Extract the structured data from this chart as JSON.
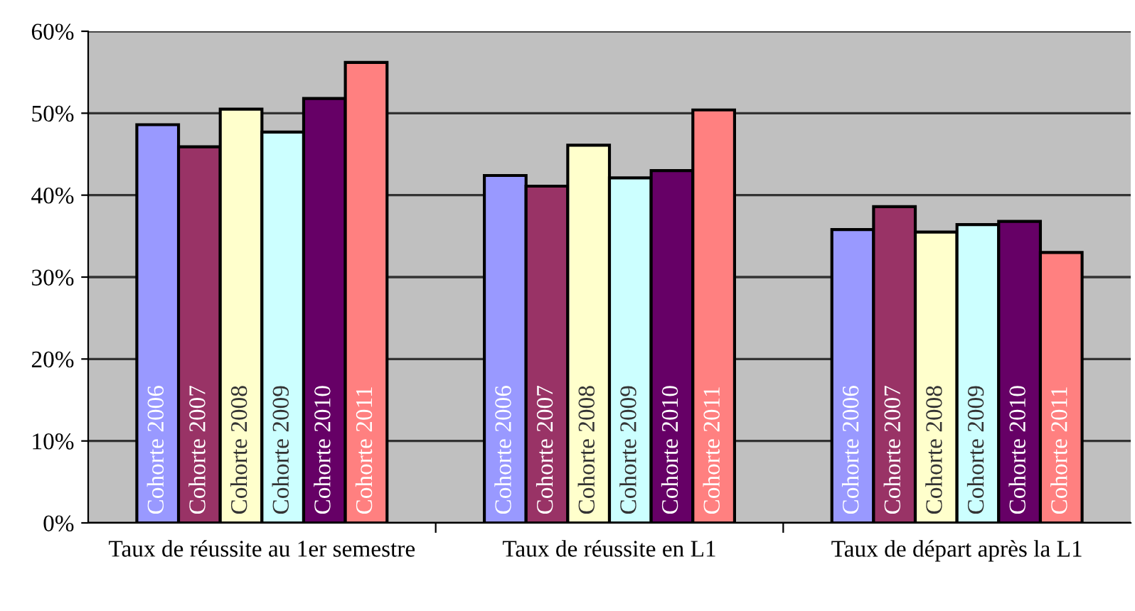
{
  "chart_data": {
    "type": "bar",
    "categories": [
      "Taux de réussite au 1er semestre",
      "Taux de réussite en L1",
      "Taux de départ après la L1"
    ],
    "series": [
      {
        "name": "Cohorte 2006",
        "color": "#9999ff",
        "values": [
          48.6,
          42.4,
          35.8
        ]
      },
      {
        "name": "Cohorte 2007",
        "color": "#993366",
        "values": [
          45.9,
          41.1,
          38.6
        ]
      },
      {
        "name": "Cohorte 2008",
        "color": "#ffffcc",
        "values": [
          50.5,
          46.1,
          35.5
        ]
      },
      {
        "name": "Cohorte 2009",
        "color": "#ccffff",
        "values": [
          47.7,
          42.1,
          36.4
        ]
      },
      {
        "name": "Cohorte 2010",
        "color": "#660066",
        "values": [
          51.8,
          43.0,
          36.8
        ]
      },
      {
        "name": "Cohorte 2011",
        "color": "#ff8080",
        "values": [
          56.2,
          50.4,
          33.0
        ]
      }
    ],
    "ylim": [
      0,
      60
    ],
    "yticks": [
      {
        "value": 0,
        "label": "0%"
      },
      {
        "value": 10,
        "label": "10%"
      },
      {
        "value": 20,
        "label": "20%"
      },
      {
        "value": 30,
        "label": "30%"
      },
      {
        "value": 40,
        "label": "40%"
      },
      {
        "value": 50,
        "label": "50%"
      },
      {
        "value": 60,
        "label": "60%"
      }
    ],
    "grid": "y",
    "legend": false
  }
}
